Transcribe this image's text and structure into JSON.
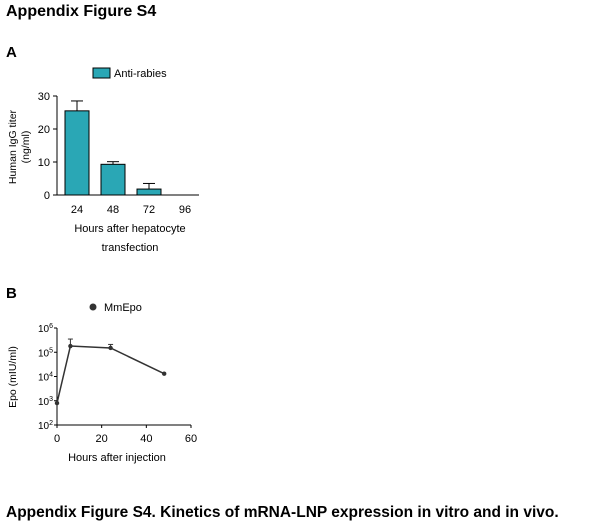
{
  "page": {
    "title": "Appendix Figure S4",
    "caption": "Appendix Figure S4. Kinetics of mRNA-LNP expression in vitro and in vivo."
  },
  "chart_data": [
    {
      "panel": "A",
      "type": "bar",
      "categories": [
        "24",
        "48",
        "72",
        "96"
      ],
      "series": [
        {
          "name": "Anti-rabies",
          "values": [
            25.5,
            9.3,
            1.8,
            0
          ],
          "errors": [
            3.0,
            0.8,
            1.7,
            0
          ]
        }
      ],
      "xlabel_lines": [
        "Hours after hepatocyte",
        "transfection"
      ],
      "ylabel_lines": [
        "Human IgG titer",
        "(ng/ml)"
      ],
      "ylim": [
        0,
        30
      ],
      "yticks": [
        0,
        10,
        20,
        30
      ],
      "bar_color": "#2aa7b5",
      "legend_position": "top",
      "grid": false
    },
    {
      "panel": "B",
      "type": "line",
      "series": [
        {
          "name": "MmEpo",
          "x": [
            0,
            6,
            24,
            48
          ],
          "y": [
            800,
            180000,
            150000,
            13000
          ],
          "errors_upper": [
            0,
            170000,
            60000,
            0
          ]
        }
      ],
      "xlabel": "Hours after injection",
      "ylabel": "Epo (mIU/ml)",
      "xlim": [
        0,
        60
      ],
      "xticks": [
        0,
        20,
        40,
        60
      ],
      "ylim": [
        100,
        1000000
      ],
      "yscale": "log",
      "yticks": [
        {
          "base": "10",
          "exp": "2",
          "value": 100
        },
        {
          "base": "10",
          "exp": "3",
          "value": 1000
        },
        {
          "base": "10",
          "exp": "4",
          "value": 10000
        },
        {
          "base": "10",
          "exp": "5",
          "value": 100000
        },
        {
          "base": "10",
          "exp": "6",
          "value": 1000000
        }
      ],
      "line_color": "#333333",
      "legend_position": "top",
      "grid": false
    }
  ]
}
